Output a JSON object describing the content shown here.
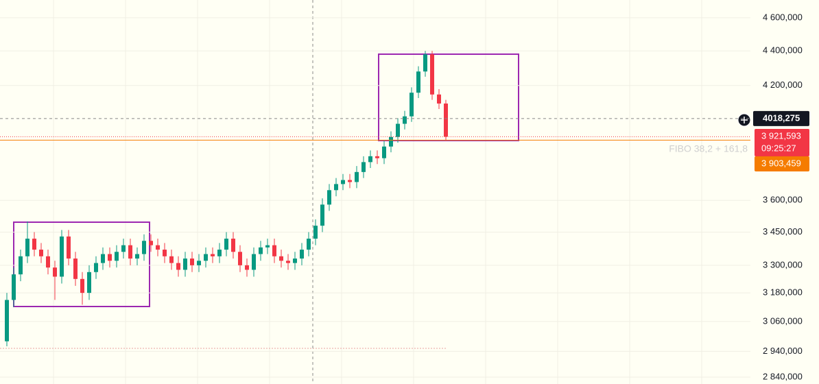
{
  "chart_data": {
    "type": "candlestick",
    "log_scale": true,
    "grid": true,
    "up_color": "#089981",
    "down_color": "#f23645",
    "open": [
      2980,
      3150,
      3260,
      3340,
      3420,
      3370,
      3340,
      3290,
      3250,
      3430,
      3330,
      3240,
      3180,
      3270,
      3310,
      3350,
      3320,
      3360,
      3390,
      3330,
      3350,
      3410,
      3390,
      3370,
      3340,
      3310,
      3280,
      3330,
      3300,
      3320,
      3350,
      3340,
      3370,
      3420,
      3360,
      3300,
      3280,
      3350,
      3380,
      3390,
      3340,
      3320,
      3310,
      3330,
      3370,
      3420,
      3480,
      3580,
      3650,
      3680,
      3700,
      3690,
      3740,
      3790,
      3820,
      3810,
      3870,
      3920,
      3990,
      4030,
      4160,
      4280,
      4380,
      4150,
      4100
    ],
    "high": [
      3180,
      3290,
      3370,
      3500,
      3450,
      3400,
      3370,
      3320,
      3460,
      3460,
      3360,
      3270,
      3300,
      3340,
      3380,
      3380,
      3390,
      3420,
      3420,
      3380,
      3440,
      3440,
      3420,
      3400,
      3370,
      3340,
      3360,
      3360,
      3350,
      3380,
      3380,
      3400,
      3450,
      3450,
      3390,
      3330,
      3380,
      3410,
      3420,
      3420,
      3370,
      3350,
      3360,
      3400,
      3450,
      3510,
      3610,
      3680,
      3710,
      3730,
      3730,
      3770,
      3820,
      3850,
      3850,
      3900,
      3950,
      4020,
      4060,
      4190,
      4310,
      4400,
      4400,
      4180,
      4120
    ],
    "low": [
      2960,
      3120,
      3230,
      3310,
      3340,
      3310,
      3260,
      3150,
      3220,
      3300,
      3210,
      3130,
      3150,
      3240,
      3280,
      3290,
      3290,
      3330,
      3300,
      3300,
      3320,
      3360,
      3340,
      3310,
      3280,
      3250,
      3250,
      3270,
      3270,
      3290,
      3310,
      3310,
      3340,
      3330,
      3270,
      3250,
      3250,
      3320,
      3350,
      3310,
      3290,
      3280,
      3280,
      3300,
      3340,
      3390,
      3450,
      3550,
      3620,
      3650,
      3660,
      3660,
      3710,
      3760,
      3780,
      3780,
      3840,
      3890,
      3960,
      4000,
      4130,
      4250,
      4120,
      4070,
      3900
    ],
    "close": [
      3150,
      3260,
      3340,
      3420,
      3370,
      3340,
      3290,
      3250,
      3430,
      3330,
      3240,
      3180,
      3270,
      3310,
      3350,
      3320,
      3360,
      3390,
      3330,
      3350,
      3410,
      3390,
      3370,
      3340,
      3310,
      3280,
      3330,
      3300,
      3320,
      3350,
      3340,
      3370,
      3420,
      3360,
      3300,
      3280,
      3350,
      3380,
      3390,
      3340,
      3320,
      3310,
      3330,
      3370,
      3420,
      3480,
      3580,
      3650,
      3680,
      3700,
      3690,
      3740,
      3790,
      3820,
      3810,
      3870,
      3920,
      3990,
      4030,
      4160,
      4280,
      4380,
      4150,
      4100,
      3921.593
    ],
    "ylim": [
      2814,
      4711
    ],
    "yticks": [
      {
        "value": 4600,
        "label": "4 600,000"
      },
      {
        "value": 4400,
        "label": "4 400,000"
      },
      {
        "value": 4200,
        "label": "4 200,000"
      },
      {
        "value": 3600,
        "label": "3 600,000"
      },
      {
        "value": 3450,
        "label": "3 450,000"
      },
      {
        "value": 3300,
        "label": "3 300,000"
      },
      {
        "value": 3180,
        "label": "3 180,000"
      },
      {
        "value": 3060,
        "label": "3 060,000"
      },
      {
        "value": 2940,
        "label": "2 940,000"
      },
      {
        "value": 2840,
        "label": "2 840,000"
      }
    ],
    "crosshair_price": {
      "value": 4018.275,
      "label": "4018,275",
      "color": "#131722"
    },
    "last_price": {
      "value": 3921.593,
      "label": "3 921,593",
      "countdown": "09:25:27",
      "color": "#f23645"
    },
    "fibo_level": {
      "value": 3903.459,
      "label": "3 903,459",
      "name": "FIBO 38,2 + 161,8",
      "color": "#f57c00"
    }
  }
}
